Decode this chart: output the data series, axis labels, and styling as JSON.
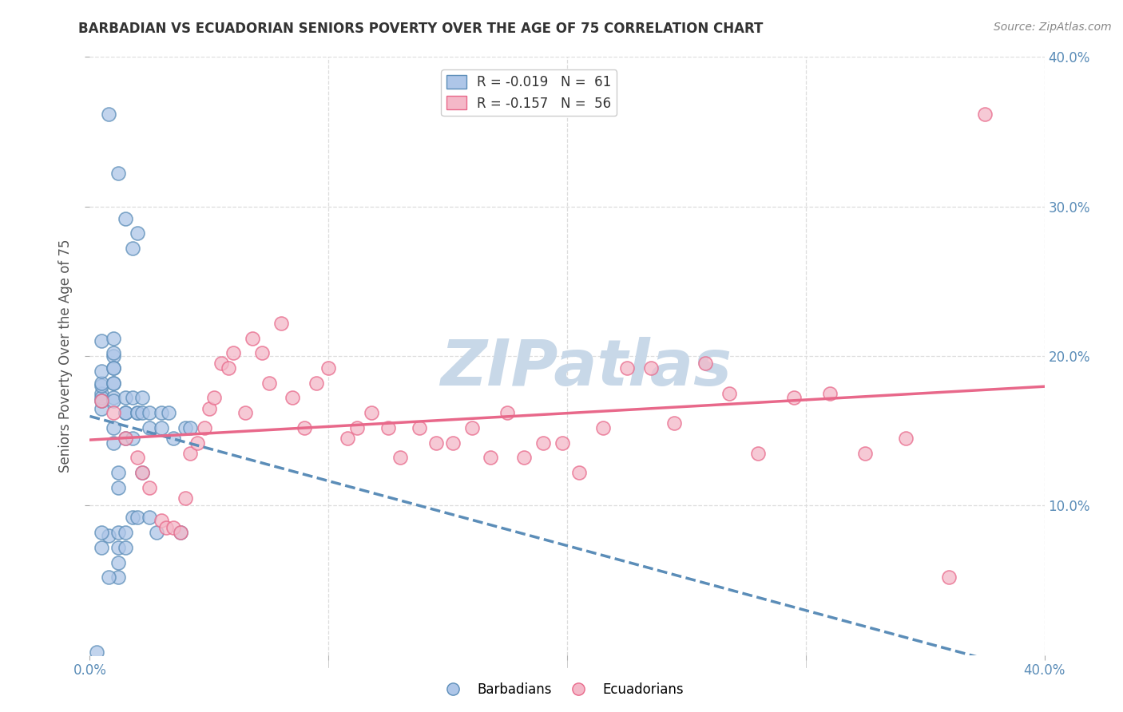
{
  "title": "BARBADIAN VS ECUADORIAN SENIORS POVERTY OVER THE AGE OF 75 CORRELATION CHART",
  "source": "Source: ZipAtlas.com",
  "ylabel": "Seniors Poverty Over the Age of 75",
  "xlim": [
    0.0,
    0.4
  ],
  "ylim": [
    0.0,
    0.4
  ],
  "yticks": [
    0.1,
    0.2,
    0.3,
    0.4
  ],
  "ytick_labels": [
    "10.0%",
    "20.0%",
    "30.0%",
    "40.0%"
  ],
  "xtick_labels_show": [
    "0.0%",
    "40.0%"
  ],
  "xtick_positions_show": [
    0.0,
    0.4
  ],
  "xtick_minor_positions": [
    0.05,
    0.1,
    0.15,
    0.2,
    0.25,
    0.3,
    0.35
  ],
  "blue_color": "#5B8DB8",
  "pink_color": "#E8688A",
  "blue_fill": "#AEC6E8",
  "pink_fill": "#F4B8C8",
  "legend_R_blue": "R = -0.019",
  "legend_N_blue": "N =  61",
  "legend_R_pink": "R = -0.157",
  "legend_N_pink": "N =  56",
  "watermark": "ZIPatlas",
  "watermark_color": "#C8D8E8",
  "blue_scatter_x": [
    0.005,
    0.005,
    0.005,
    0.005,
    0.005,
    0.005,
    0.005,
    0.005,
    0.008,
    0.01,
    0.01,
    0.01,
    0.01,
    0.01,
    0.01,
    0.01,
    0.01,
    0.01,
    0.01,
    0.01,
    0.012,
    0.012,
    0.012,
    0.012,
    0.012,
    0.012,
    0.015,
    0.015,
    0.015,
    0.015,
    0.015,
    0.015,
    0.018,
    0.018,
    0.018,
    0.02,
    0.02,
    0.02,
    0.022,
    0.022,
    0.022,
    0.025,
    0.025,
    0.025,
    0.028,
    0.03,
    0.03,
    0.033,
    0.035,
    0.038,
    0.04,
    0.042,
    0.008,
    0.012,
    0.015,
    0.018,
    0.02,
    0.003,
    0.008,
    0.005,
    0.005
  ],
  "blue_scatter_y": [
    0.175,
    0.165,
    0.172,
    0.18,
    0.182,
    0.19,
    0.17,
    0.21,
    0.08,
    0.172,
    0.17,
    0.182,
    0.2,
    0.192,
    0.202,
    0.212,
    0.142,
    0.152,
    0.182,
    0.192,
    0.122,
    0.112,
    0.072,
    0.062,
    0.052,
    0.082,
    0.172,
    0.162,
    0.145,
    0.162,
    0.072,
    0.082,
    0.092,
    0.145,
    0.172,
    0.162,
    0.162,
    0.092,
    0.162,
    0.172,
    0.122,
    0.092,
    0.162,
    0.152,
    0.082,
    0.152,
    0.162,
    0.162,
    0.145,
    0.082,
    0.152,
    0.152,
    0.362,
    0.322,
    0.292,
    0.272,
    0.282,
    0.002,
    0.052,
    0.082,
    0.072
  ],
  "pink_scatter_x": [
    0.005,
    0.01,
    0.015,
    0.02,
    0.022,
    0.025,
    0.03,
    0.032,
    0.035,
    0.038,
    0.04,
    0.042,
    0.045,
    0.048,
    0.05,
    0.052,
    0.055,
    0.058,
    0.06,
    0.065,
    0.068,
    0.072,
    0.075,
    0.08,
    0.085,
    0.09,
    0.095,
    0.1,
    0.108,
    0.112,
    0.118,
    0.125,
    0.13,
    0.138,
    0.145,
    0.152,
    0.16,
    0.168,
    0.175,
    0.182,
    0.19,
    0.198,
    0.205,
    0.215,
    0.225,
    0.235,
    0.245,
    0.258,
    0.268,
    0.28,
    0.295,
    0.31,
    0.325,
    0.342,
    0.36,
    0.375
  ],
  "pink_scatter_y": [
    0.17,
    0.162,
    0.145,
    0.132,
    0.122,
    0.112,
    0.09,
    0.085,
    0.085,
    0.082,
    0.105,
    0.135,
    0.142,
    0.152,
    0.165,
    0.172,
    0.195,
    0.192,
    0.202,
    0.162,
    0.212,
    0.202,
    0.182,
    0.222,
    0.172,
    0.152,
    0.182,
    0.192,
    0.145,
    0.152,
    0.162,
    0.152,
    0.132,
    0.152,
    0.142,
    0.142,
    0.152,
    0.132,
    0.162,
    0.132,
    0.142,
    0.142,
    0.122,
    0.152,
    0.192,
    0.192,
    0.155,
    0.195,
    0.175,
    0.135,
    0.172,
    0.175,
    0.135,
    0.145,
    0.052,
    0.362
  ],
  "grid_color": "#DDDDDD",
  "title_color": "#333333",
  "axis_label_color": "#555555",
  "tick_color": "#5B8DB8"
}
